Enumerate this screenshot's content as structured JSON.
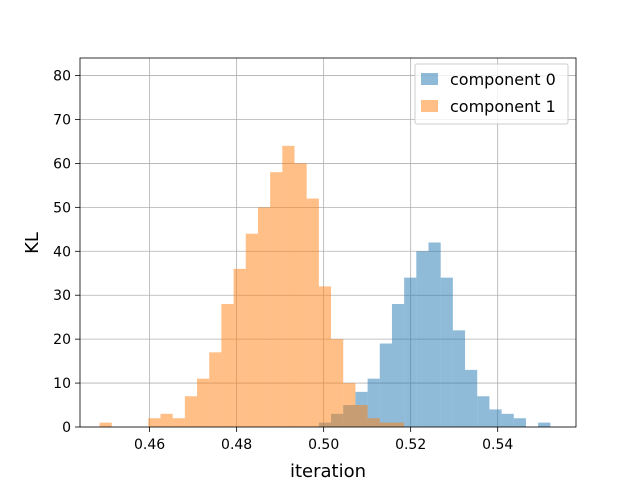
{
  "chart_data": {
    "type": "bar",
    "title": "",
    "xlabel": "iteration",
    "ylabel": "KL",
    "xlim": [
      0.444,
      0.558
    ],
    "ylim": [
      0,
      84
    ],
    "grid": true,
    "legend_position": "top-right",
    "x_ticks": [
      0.46,
      0.48,
      0.5,
      0.52,
      0.54
    ],
    "x_tick_labels": [
      "0.46",
      "0.48",
      "0.50",
      "0.52",
      "0.54"
    ],
    "y_ticks": [
      0,
      10,
      20,
      30,
      40,
      50,
      60,
      70,
      80
    ],
    "y_tick_labels": [
      "0",
      "10",
      "20",
      "30",
      "40",
      "50",
      "60",
      "70",
      "80"
    ],
    "series": [
      {
        "name": "component 0",
        "color": "#1f77b4",
        "opacity": 0.5,
        "bin_edges": [
          0.4485,
          0.4513,
          0.4541,
          0.4569,
          0.4597,
          0.4625,
          0.4653,
          0.4681,
          0.4709,
          0.4737,
          0.4765,
          0.4793,
          0.4821,
          0.4849,
          0.4877,
          0.4905,
          0.4933,
          0.4961,
          0.4989,
          0.5017,
          0.5045,
          0.5073,
          0.5101,
          0.5129,
          0.5157,
          0.5185,
          0.5213,
          0.5241,
          0.5269,
          0.5297,
          0.5325,
          0.5353,
          0.5381,
          0.5409,
          0.5437,
          0.5465,
          0.5493,
          0.5521
        ],
        "counts": [
          0,
          0,
          0,
          0,
          0,
          0,
          0,
          0,
          0,
          0,
          0,
          0,
          0,
          0,
          0,
          0,
          0,
          0,
          1,
          3,
          5,
          8,
          11,
          19,
          28,
          34,
          40,
          42,
          34,
          22,
          13,
          7,
          4,
          3,
          2,
          0,
          1
        ]
      },
      {
        "name": "component 1",
        "color": "#ff7f0e",
        "opacity": 0.5,
        "bin_edges": [
          0.4485,
          0.4513,
          0.4541,
          0.4569,
          0.4597,
          0.4625,
          0.4653,
          0.4681,
          0.4709,
          0.4737,
          0.4765,
          0.4793,
          0.4821,
          0.4849,
          0.4877,
          0.4905,
          0.4933,
          0.4961,
          0.4989,
          0.5017,
          0.5045,
          0.5073,
          0.5101,
          0.5129,
          0.5157,
          0.5185,
          0.5213,
          0.5241,
          0.5269,
          0.5297,
          0.5325,
          0.5353,
          0.5381,
          0.5409,
          0.5437,
          0.5465,
          0.5493,
          0.5521
        ],
        "counts": [
          1,
          0,
          0,
          0,
          2,
          3,
          2,
          7,
          11,
          17,
          28,
          36,
          44,
          50,
          58,
          64,
          60,
          52,
          32,
          20,
          10,
          5,
          2,
          1,
          1,
          0,
          0,
          0,
          0,
          0,
          0,
          0,
          0,
          0,
          0,
          0,
          0
        ]
      }
    ]
  }
}
